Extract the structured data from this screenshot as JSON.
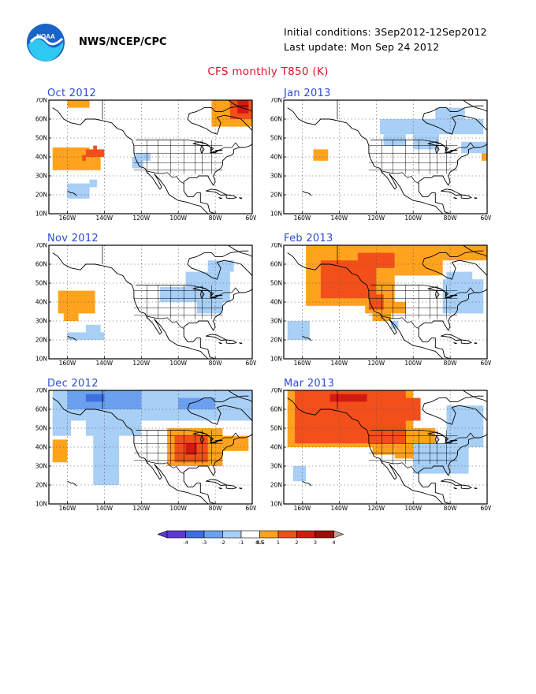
{
  "header": {
    "org": "NWS/NCEP/CPC",
    "initial_conditions": "Initial conditions: 3Sep2012-12Sep2012",
    "last_update": "Last update: Mon Sep 24 2012",
    "title": "CFS monthly T850 (K)"
  },
  "logo": {
    "text": "NOAA",
    "icon": "noaa-logo-icon"
  },
  "axes": {
    "lat_labels": [
      "70N",
      "60N",
      "50N",
      "40N",
      "30N",
      "20N",
      "10N"
    ],
    "lon_labels": [
      "160W",
      "140W",
      "120W",
      "100W",
      "80W",
      "60W"
    ]
  },
  "panels": [
    {
      "title": "Oct 2012",
      "anomalies": [
        {
          "lat": [
            33,
            45
          ],
          "lon": [
            -168,
            -148
          ],
          "value": 0.75
        },
        {
          "lat": [
            40,
            44
          ],
          "lon": [
            -150,
            -140
          ],
          "value": 1.5
        },
        {
          "lat": [
            42,
            46
          ],
          "lon": [
            -146,
            -144
          ],
          "value": 1.5
        },
        {
          "lat": [
            38,
            41
          ],
          "lon": [
            -152,
            -150
          ],
          "value": 1.5
        },
        {
          "lat": [
            33,
            42
          ],
          "lon": [
            -148,
            -142
          ],
          "value": 0.75
        },
        {
          "lat": [
            66,
            70
          ],
          "lon": [
            -160,
            -148
          ],
          "value": 0.75
        },
        {
          "lat": [
            56,
            70
          ],
          "lon": [
            -82,
            -60
          ],
          "value": 0.75
        },
        {
          "lat": [
            60,
            70
          ],
          "lon": [
            -72,
            -60
          ],
          "value": 1.5
        },
        {
          "lat": [
            63,
            70
          ],
          "lon": [
            -68,
            -62
          ],
          "value": 2.5
        },
        {
          "lat": [
            18,
            26
          ],
          "lon": [
            -160,
            -148
          ],
          "value": -0.75
        },
        {
          "lat": [
            24,
            28
          ],
          "lon": [
            -148,
            -144
          ],
          "value": -0.75
        },
        {
          "lat": [
            34,
            40
          ],
          "lon": [
            -125,
            -119
          ],
          "value": -0.75
        },
        {
          "lat": [
            38,
            42
          ],
          "lon": [
            -123,
            -115
          ],
          "value": -0.75
        }
      ]
    },
    {
      "title": "Jan 2013",
      "anomalies": [
        {
          "lat": [
            38,
            44
          ],
          "lon": [
            -154,
            -146
          ],
          "value": 0.75
        },
        {
          "lat": [
            38,
            42
          ],
          "lon": [
            -63,
            -60
          ],
          "value": 0.75
        },
        {
          "lat": [
            52,
            60
          ],
          "lon": [
            -118,
            -62
          ],
          "value": -0.75
        },
        {
          "lat": [
            46,
            52
          ],
          "lon": [
            -116,
            -104
          ],
          "value": -0.75
        },
        {
          "lat": [
            44,
            52
          ],
          "lon": [
            -100,
            -86
          ],
          "value": -0.75
        },
        {
          "lat": [
            42,
            48
          ],
          "lon": [
            -74,
            -60
          ],
          "value": -0.75
        },
        {
          "lat": [
            56,
            66
          ],
          "lon": [
            -88,
            -72
          ],
          "value": -0.75
        }
      ]
    },
    {
      "title": "Nov 2012",
      "anomalies": [
        {
          "lat": [
            34,
            46
          ],
          "lon": [
            -165,
            -145
          ],
          "value": 0.75
        },
        {
          "lat": [
            30,
            34
          ],
          "lon": [
            -162,
            -154
          ],
          "value": 0.75
        },
        {
          "lat": [
            20,
            24
          ],
          "lon": [
            -160,
            -140
          ],
          "value": -0.75
        },
        {
          "lat": [
            24,
            28
          ],
          "lon": [
            -150,
            -142
          ],
          "value": -0.75
        },
        {
          "lat": [
            40,
            56
          ],
          "lon": [
            -96,
            -72
          ],
          "value": -0.75
        },
        {
          "lat": [
            40,
            48
          ],
          "lon": [
            -110,
            -95
          ],
          "value": -0.75
        },
        {
          "lat": [
            56,
            62
          ],
          "lon": [
            -84,
            -70
          ],
          "value": -0.75
        },
        {
          "lat": [
            34,
            40
          ],
          "lon": [
            -90,
            -76
          ],
          "value": -0.75
        }
      ]
    },
    {
      "title": "Feb 2013",
      "anomalies": [
        {
          "lat": [
            38,
            70
          ],
          "lon": [
            -158,
            -110
          ],
          "value": 0.75
        },
        {
          "lat": [
            34,
            40
          ],
          "lon": [
            -126,
            -104
          ],
          "value": 0.75
        },
        {
          "lat": [
            30,
            34
          ],
          "lon": [
            -122,
            -112
          ],
          "value": 0.75
        },
        {
          "lat": [
            54,
            70
          ],
          "lon": [
            -110,
            -84
          ],
          "value": 0.75
        },
        {
          "lat": [
            62,
            70
          ],
          "lon": [
            -84,
            -60
          ],
          "value": 0.75
        },
        {
          "lat": [
            42,
            62
          ],
          "lon": [
            -150,
            -120
          ],
          "value": 1.5
        },
        {
          "lat": [
            58,
            66
          ],
          "lon": [
            -130,
            -110
          ],
          "value": 1.5
        },
        {
          "lat": [
            36,
            44
          ],
          "lon": [
            -124,
            -116
          ],
          "value": 1.5
        },
        {
          "lat": [
            20,
            30
          ],
          "lon": [
            -168,
            -156
          ],
          "value": -0.75
        },
        {
          "lat": [
            34,
            52
          ],
          "lon": [
            -84,
            -62
          ],
          "value": -0.75
        },
        {
          "lat": [
            46,
            56
          ],
          "lon": [
            -82,
            -68
          ],
          "value": -0.75
        },
        {
          "lat": [
            26,
            30
          ],
          "lon": [
            -112,
            -108
          ],
          "value": -0.75
        }
      ]
    },
    {
      "title": "Dec 2012",
      "anomalies": [
        {
          "lat": [
            54,
            70
          ],
          "lon": [
            -168,
            -60
          ],
          "value": -0.75
        },
        {
          "lat": [
            46,
            56
          ],
          "lon": [
            -150,
            -120
          ],
          "value": -0.75
        },
        {
          "lat": [
            20,
            48
          ],
          "lon": [
            -146,
            -132
          ],
          "value": -0.75
        },
        {
          "lat": [
            46,
            56
          ],
          "lon": [
            -168,
            -158
          ],
          "value": -0.75
        },
        {
          "lat": [
            60,
            70
          ],
          "lon": [
            -160,
            -120
          ],
          "value": -1.5
        },
        {
          "lat": [
            64,
            68
          ],
          "lon": [
            -150,
            -140
          ],
          "value": -2.5
        },
        {
          "lat": [
            60,
            66
          ],
          "lon": [
            -100,
            -80
          ],
          "value": -1.5
        },
        {
          "lat": [
            32,
            44
          ],
          "lon": [
            -168,
            -160
          ],
          "value": 0.75
        },
        {
          "lat": [
            30,
            50
          ],
          "lon": [
            -106,
            -76
          ],
          "value": 0.75
        },
        {
          "lat": [
            38,
            46
          ],
          "lon": [
            -76,
            -62
          ],
          "value": 0.75
        },
        {
          "lat": [
            32,
            46
          ],
          "lon": [
            -102,
            -84
          ],
          "value": 1.5
        },
        {
          "lat": [
            36,
            42
          ],
          "lon": [
            -96,
            -90
          ],
          "value": 2.5
        }
      ]
    },
    {
      "title": "Mar 2013",
      "anomalies": [
        {
          "lat": [
            40,
            70
          ],
          "lon": [
            -168,
            -100
          ],
          "value": 0.75
        },
        {
          "lat": [
            34,
            50
          ],
          "lon": [
            -110,
            -88
          ],
          "value": 0.75
        },
        {
          "lat": [
            36,
            42
          ],
          "lon": [
            -122,
            -110
          ],
          "value": 0.75
        },
        {
          "lat": [
            42,
            70
          ],
          "lon": [
            -164,
            -104
          ],
          "value": 1.5
        },
        {
          "lat": [
            54,
            66
          ],
          "lon": [
            -112,
            -96
          ],
          "value": 1.5
        },
        {
          "lat": [
            64,
            68
          ],
          "lon": [
            -145,
            -125
          ],
          "value": 2.5
        },
        {
          "lat": [
            22,
            30
          ],
          "lon": [
            -165,
            -158
          ],
          "value": -0.75
        },
        {
          "lat": [
            26,
            42
          ],
          "lon": [
            -100,
            -70
          ],
          "value": -0.75
        },
        {
          "lat": [
            40,
            62
          ],
          "lon": [
            -82,
            -62
          ],
          "value": -0.75
        }
      ]
    }
  ],
  "colorbar": {
    "labels": [
      "-4",
      "-3",
      "-2",
      "-1",
      "-0.5",
      "0.5",
      "1",
      "2",
      "3",
      "4"
    ],
    "colors": [
      "#5b3ad3",
      "#3e6ee0",
      "#6aa0ee",
      "#a8cff6",
      "#ffffff",
      "#ffa21e",
      "#f34f1a",
      "#d11b12",
      "#9c0e0a",
      "#c8a090"
    ]
  }
}
